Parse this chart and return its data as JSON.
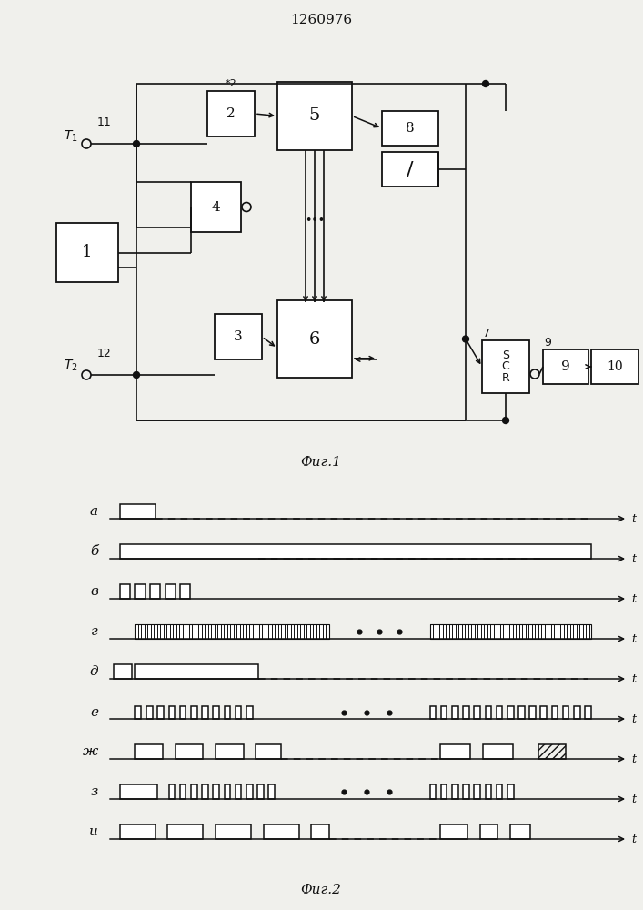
{
  "title": "1260976",
  "fig1_caption": "Фиг.1",
  "fig2_caption": "Фиг.2",
  "bg": "#f0f0ec",
  "lc": "#111111",
  "bf": "#ffffff",
  "timing_labels": [
    "а",
    "б",
    "в",
    "г",
    "д",
    "е",
    "ж",
    "з",
    "и"
  ]
}
